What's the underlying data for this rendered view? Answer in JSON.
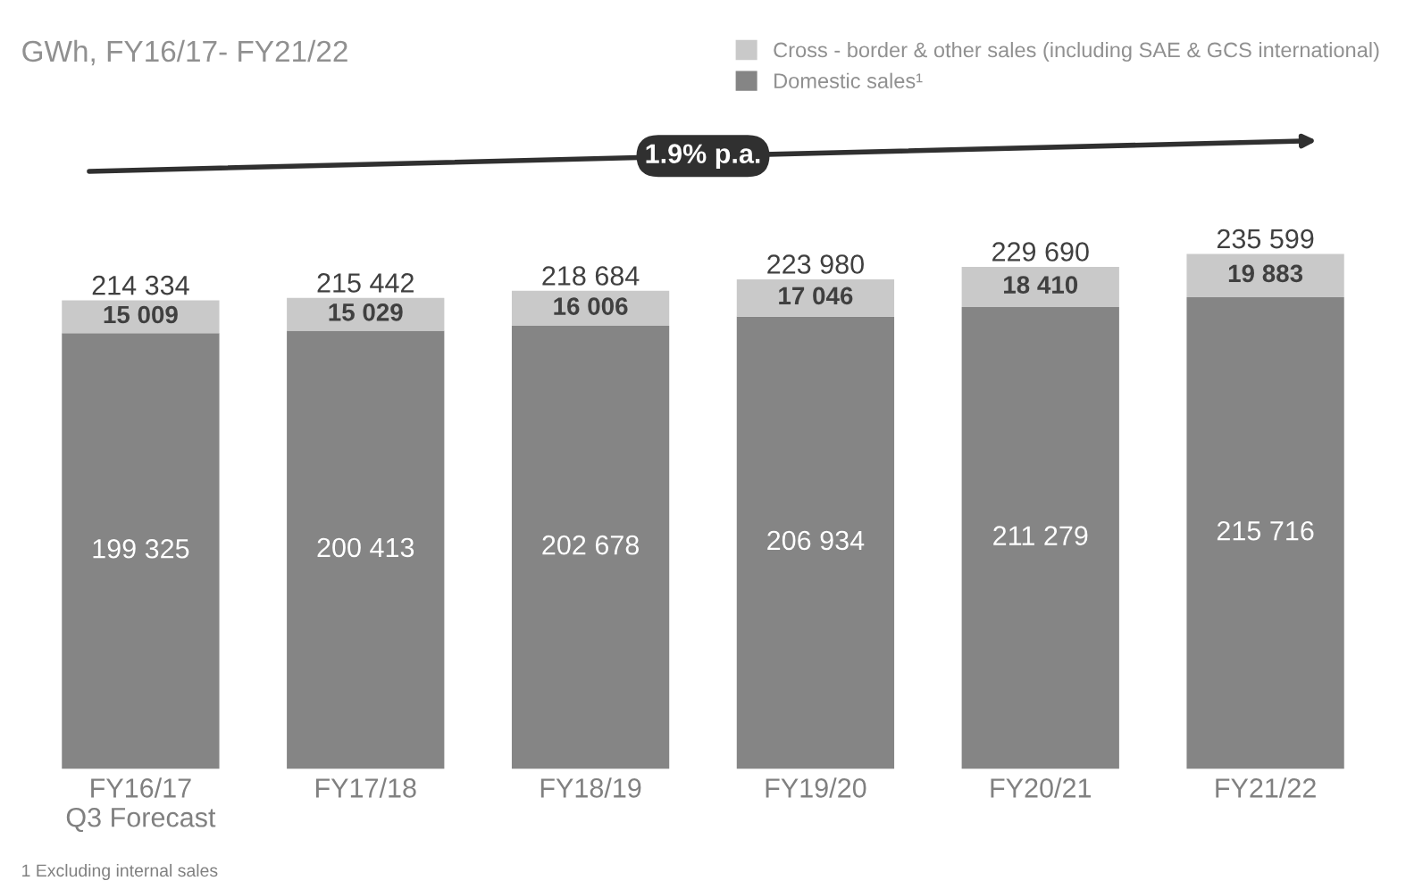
{
  "chart_data": {
    "type": "bar",
    "stacked": true,
    "title": "GWh, FY16/17- FY21/22",
    "categories": [
      "FY16/17\nQ3 Forecast",
      "FY17/18",
      "FY18/19",
      "FY19/20",
      "FY20/21",
      "FY21/22"
    ],
    "series": [
      {
        "name": "Domestic sales¹",
        "color": "#858585",
        "values": [
          199325,
          200413,
          202678,
          206934,
          211279,
          215716
        ],
        "value_labels": [
          "199 325",
          "200 413",
          "202 678",
          "206 934",
          "211 279",
          "215 716"
        ]
      },
      {
        "name": "Cross - border & other sales (including SAE & GCS international)",
        "color": "#c9c9c9",
        "values": [
          15009,
          15029,
          16006,
          17046,
          18410,
          19883
        ],
        "value_labels": [
          "15 009",
          "15 029",
          "16 006",
          "17 046",
          "18 410",
          "19 883"
        ]
      }
    ],
    "totals": [
      "214 334",
      "215 442",
      "218 684",
      "223 980",
      "229 690",
      "235 599"
    ],
    "legend": "top right",
    "grid": false,
    "annotations": [
      "1.9% p.a.",
      "1 Excluding internal sales"
    ]
  }
}
